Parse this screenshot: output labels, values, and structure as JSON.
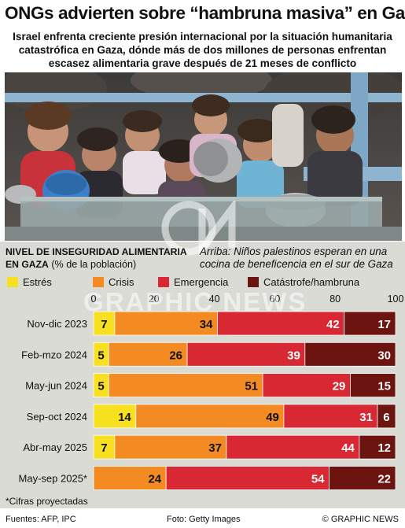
{
  "headline": "ONGs advierten sobre “hambruna masiva” en Gaza",
  "subhead": "Israel enfrenta creciente presión internacional por la situación humanitaria catastrófica en Gaza, dónde más de dos millones de personas enfrentan escasez alimentaria grave después de 21 meses de conflicto",
  "panel_title_bold": "Nivel de Inseguridad Alimentaria en Gaza",
  "panel_title_rest": " (% de la población)",
  "photo_caption": "Arriba: Niños palestinos esperan en una cocina de beneficencia en el sur de Gaza",
  "watermark": "GRAPHIC NEWS",
  "legend": [
    {
      "label": "Estrés",
      "color": "#f7e01f"
    },
    {
      "label": "Crisis",
      "color": "#f38b22"
    },
    {
      "label": "Emergencia",
      "color": "#d72833"
    },
    {
      "label": "Catástrofe/hambruna",
      "color": "#6b1410"
    }
  ],
  "chart_data": {
    "type": "bar",
    "orientation": "horizontal",
    "stacked": true,
    "xlim": [
      0,
      100
    ],
    "xticks": [
      "0",
      "20",
      "40",
      "60",
      "80",
      "100"
    ],
    "categories": [
      "Nov-dic 2023",
      "Feb-mzo 2024",
      "May-jun 2024",
      "Sep-oct 2024",
      "Abr-may 2025",
      "May-sep 2025*"
    ],
    "series": [
      {
        "name": "Estrés",
        "color": "#f7e01f",
        "values": [
          7,
          5,
          5,
          14,
          7,
          0
        ]
      },
      {
        "name": "Crisis",
        "color": "#f38b22",
        "values": [
          34,
          26,
          51,
          49,
          37,
          24
        ]
      },
      {
        "name": "Emergencia",
        "color": "#d72833",
        "values": [
          42,
          39,
          29,
          31,
          44,
          54
        ]
      },
      {
        "name": "Catástrofe/hambruna",
        "color": "#6b1410",
        "values": [
          17,
          30,
          15,
          6,
          12,
          22
        ]
      }
    ],
    "grid": true,
    "legend_position": "top"
  },
  "footnote": "*Cifras proyectadas",
  "footer": {
    "sources": "Fuentes: AFP, IPC",
    "photo_credit": "Foto: Getty Images",
    "copyright": "© GRAPHIC NEWS"
  }
}
